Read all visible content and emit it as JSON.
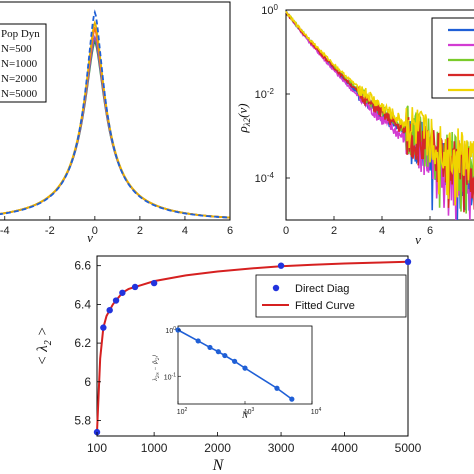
{
  "chart_data": [
    {
      "type": "line",
      "title": "",
      "xlabel": "v",
      "ylabel": "",
      "xlim": [
        -4.3,
        6
      ],
      "ylim": [
        0,
        1.05
      ],
      "xticks": [
        "-4",
        "-2",
        "0",
        "2",
        "4",
        "6"
      ],
      "legend_position": "top-left",
      "grid": false,
      "series": [
        {
          "name": "Pop Dyn",
          "color": "#1f5fd6",
          "dash": true,
          "peak": 1.0,
          "width": 0.58
        },
        {
          "name": "N=500",
          "color": "#e8b100",
          "dash": false,
          "peak": 0.95,
          "width": 0.62
        },
        {
          "name": "N=1000",
          "color": "#ff6a1a",
          "dash": false,
          "peak": 0.92,
          "width": 0.63
        },
        {
          "name": "N=2000",
          "color": "#8a5cc4",
          "dash": false,
          "peak": 0.88,
          "width": 0.65
        },
        {
          "name": "N=5000",
          "color": "#2b8a3e",
          "dash": false,
          "peak": 0.86,
          "width": 0.66
        }
      ]
    },
    {
      "type": "line",
      "title": "",
      "xlabel": "v",
      "ylabel": "ρ_{λ2}(v)",
      "xlim": [
        0,
        8
      ],
      "ylim_log10": [
        -5,
        0
      ],
      "yscale": "log",
      "xticks": [
        "0",
        "2",
        "4",
        "6"
      ],
      "yticks": [
        "10^0",
        "10^-2",
        "10^-4"
      ],
      "legend_position": "top-right",
      "grid": false,
      "series": [
        {
          "color": "#1f5fd6",
          "decay": 1.02
        },
        {
          "color": "#d23cd2",
          "decay": 1.05
        },
        {
          "color": "#7acb2a",
          "decay": 0.98
        },
        {
          "color": "#d62828",
          "decay": 1.0
        },
        {
          "color": "#f0d400",
          "decay": 0.95
        }
      ]
    },
    {
      "type": "scatter",
      "title": "",
      "xlabel": "N",
      "ylabel": "< λ_2 >",
      "xlim": [
        0,
        5000
      ],
      "ylim": [
        5.72,
        6.65
      ],
      "xticks": [
        "100",
        "1000",
        "2000",
        "3000",
        "4000",
        "5000"
      ],
      "yticks": [
        "5.8",
        "6",
        "6.2",
        "6.4",
        "6.6"
      ],
      "legend_position": "top-right",
      "grid": false,
      "series": [
        {
          "name": "Direct Diag",
          "kind": "points",
          "color": "#2233dd",
          "x": [
            100,
            200,
            300,
            400,
            500,
            700,
            1000,
            3000,
            5000
          ],
          "y": [
            5.74,
            6.28,
            6.37,
            6.42,
            6.46,
            6.49,
            6.51,
            6.6,
            6.62
          ]
        },
        {
          "name": "Fitted Curve",
          "kind": "line",
          "color": "#d62020",
          "x": [
            100,
            150,
            200,
            250,
            300,
            350,
            400,
            500,
            600,
            700,
            800,
            1000,
            1500,
            2000,
            2500,
            3000,
            3500,
            4000,
            4500,
            5000
          ],
          "y": [
            5.74,
            6.12,
            6.28,
            6.34,
            6.37,
            6.4,
            6.42,
            6.46,
            6.48,
            6.49,
            6.5,
            6.52,
            6.55,
            6.57,
            6.585,
            6.597,
            6.605,
            6.611,
            6.616,
            6.62
          ]
        }
      ],
      "inset": {
        "type": "line",
        "xlabel": "N",
        "ylabel": "λ_2∞ − ⟨λ_2⟩",
        "xscale": "log",
        "yscale": "log",
        "xticks": [
          "10^2",
          "10^3",
          "10^4"
        ],
        "yticks": [
          "10^0",
          "10^-1"
        ],
        "color": "#1f5fd6",
        "x": [
          100,
          200,
          300,
          400,
          500,
          700,
          1000,
          3000,
          5000
        ],
        "y": [
          1.0,
          0.58,
          0.42,
          0.34,
          0.28,
          0.21,
          0.15,
          0.055,
          0.032
        ]
      }
    }
  ]
}
